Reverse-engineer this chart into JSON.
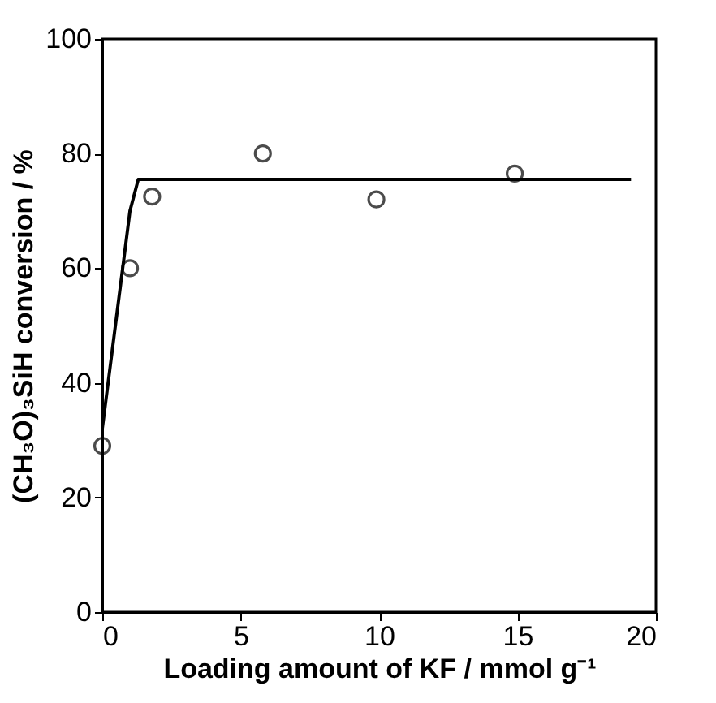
{
  "chart_data": {
    "type": "scatter",
    "xlabel": "Loading amount of KF / mmol g⁻¹",
    "ylabel": "(CH₃O)₃SiH conversion / %",
    "xlim": [
      0,
      20
    ],
    "xticks": [
      0,
      5,
      10,
      15,
      20
    ],
    "ylim": [
      0,
      100
    ],
    "yticks": [
      0,
      20,
      40,
      60,
      80,
      100
    ],
    "grid": false,
    "legend": false,
    "series": [
      {
        "type": "scatter",
        "marker": "circle",
        "color": "#000000",
        "x": [
          0,
          1,
          1.8,
          5.8,
          9.9,
          14.9
        ],
        "values": [
          29,
          60,
          72.5,
          80,
          72,
          76.5
        ]
      },
      {
        "type": "line",
        "marker": "none",
        "line_style": "solid",
        "color": "#000000",
        "x": [
          0,
          1.0,
          1.3,
          19.1
        ],
        "values": [
          32,
          70,
          75.5,
          75.5
        ]
      }
    ]
  }
}
